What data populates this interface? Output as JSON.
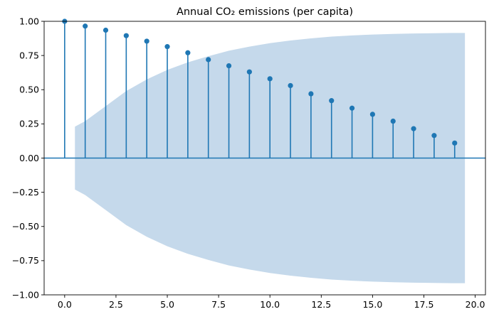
{
  "chart_data": {
    "type": "stem",
    "title": "Annual CO₂ emissions (per capita)",
    "xlabel": "",
    "ylabel": "",
    "xlim": [
      -1,
      20.5
    ],
    "ylim": [
      -1.0,
      1.0
    ],
    "x_ticks": [
      0,
      2.5,
      5,
      7.5,
      10,
      12.5,
      15,
      17.5,
      20
    ],
    "x_tick_labels": [
      "0.0",
      "2.5",
      "5.0",
      "7.5",
      "10.0",
      "12.5",
      "15.0",
      "17.5",
      "20.0"
    ],
    "y_ticks": [
      -1,
      -0.75,
      -0.5,
      -0.25,
      0,
      0.25,
      0.5,
      0.75,
      1
    ],
    "y_tick_labels": [
      "−1.00",
      "−0.75",
      "−0.50",
      "−0.25",
      "0.00",
      "0.25",
      "0.50",
      "0.75",
      "1.00"
    ],
    "lags": [
      0,
      1,
      2,
      3,
      4,
      5,
      6,
      7,
      8,
      9,
      10,
      11,
      12,
      13,
      14,
      15,
      16,
      17,
      18,
      19
    ],
    "values": [
      1.0,
      0.965,
      0.935,
      0.895,
      0.855,
      0.815,
      0.77,
      0.72,
      0.675,
      0.63,
      0.58,
      0.53,
      0.47,
      0.42,
      0.365,
      0.32,
      0.27,
      0.215,
      0.165,
      0.11
    ],
    "confidence_band": {
      "x": [
        0.5,
        1,
        2,
        3,
        4,
        5,
        6,
        7,
        8,
        9,
        10,
        11,
        12,
        13,
        14,
        15,
        16,
        17,
        18,
        19,
        19.5
      ],
      "upper": [
        0.23,
        0.27,
        0.38,
        0.49,
        0.575,
        0.645,
        0.7,
        0.745,
        0.785,
        0.815,
        0.84,
        0.86,
        0.875,
        0.888,
        0.897,
        0.903,
        0.908,
        0.911,
        0.913,
        0.915,
        0.915
      ]
    },
    "grid": false,
    "colors": {
      "stem": "#1f77b4",
      "marker": "#1f77b4",
      "band": "#c5d9eb",
      "axis": "#000000"
    }
  }
}
